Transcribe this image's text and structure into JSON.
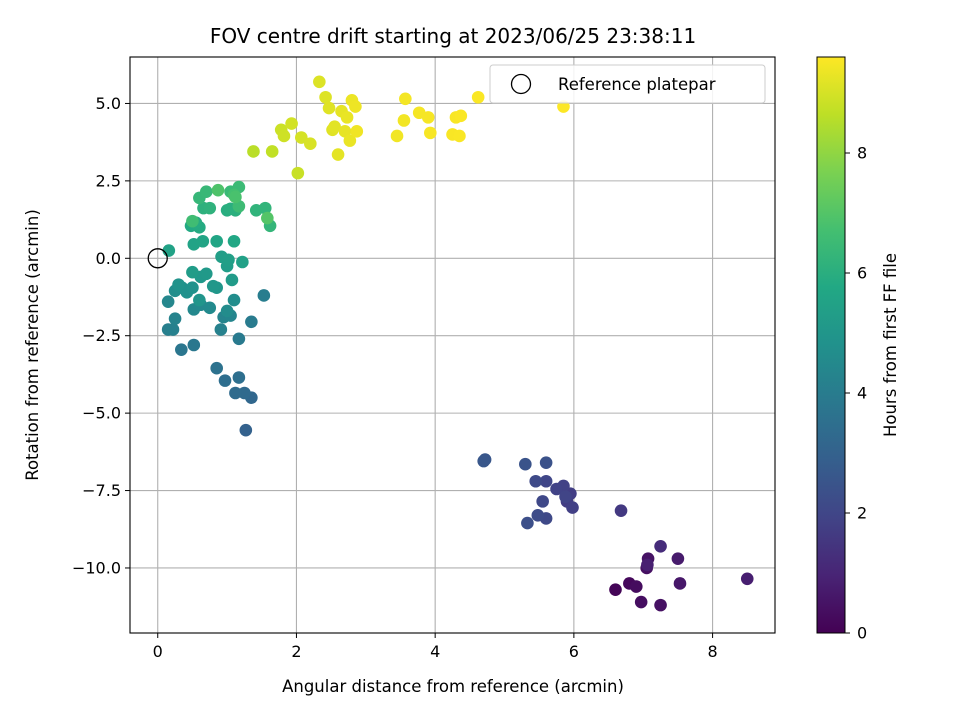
{
  "chart_data": {
    "type": "scatter",
    "title": "FOV centre drift starting at 2023/06/25 23:38:11",
    "xlabel": "Angular distance from reference (arcmin)",
    "ylabel": "Rotation from reference (arcmin)",
    "xlim": [
      -0.4,
      8.9
    ],
    "ylim": [
      -12.1,
      6.5
    ],
    "xticks": [
      0,
      2,
      4,
      6,
      8
    ],
    "yticks": [
      5.0,
      2.5,
      0.0,
      -2.5,
      -5.0,
      -7.5,
      -10.0
    ],
    "ytick_labels": [
      "5.0",
      "2.5",
      "0.0",
      "−2.5",
      "−5.0",
      "−7.5",
      "−10.0"
    ],
    "grid": true,
    "colorbar": {
      "label": "Hours from first FF file",
      "range": [
        0,
        9.6
      ],
      "ticks": [
        0,
        2,
        4,
        6,
        8
      ],
      "colormap": "viridis"
    },
    "legend": {
      "location": "top-right",
      "entries": [
        "Reference platepar"
      ]
    },
    "reference_point": {
      "x": 0,
      "y": 0
    },
    "series": [
      {
        "points": [
          {
            "x": 6.6,
            "y": -10.7,
            "h": 0.1
          },
          {
            "x": 6.8,
            "y": -10.5,
            "h": 0.2
          },
          {
            "x": 6.9,
            "y": -10.6,
            "h": 0.3
          },
          {
            "x": 6.97,
            "y": -11.1,
            "h": 0.35
          },
          {
            "x": 7.05,
            "y": -10.0,
            "h": 0.4
          },
          {
            "x": 7.25,
            "y": -11.2,
            "h": 0.45
          },
          {
            "x": 7.07,
            "y": -9.7,
            "h": 0.5
          },
          {
            "x": 7.53,
            "y": -10.5,
            "h": 0.6
          },
          {
            "x": 7.5,
            "y": -9.7,
            "h": 0.7
          },
          {
            "x": 8.5,
            "y": -10.35,
            "h": 0.8
          },
          {
            "x": 7.06,
            "y": -9.9,
            "h": 0.85
          },
          {
            "x": 7.25,
            "y": -9.3,
            "h": 1.2
          },
          {
            "x": 6.68,
            "y": -8.15,
            "h": 1.6
          },
          {
            "x": 5.9,
            "y": -7.85,
            "h": 1.7
          },
          {
            "x": 5.95,
            "y": -7.6,
            "h": 1.75
          },
          {
            "x": 5.98,
            "y": -8.05,
            "h": 1.8
          },
          {
            "x": 5.85,
            "y": -7.35,
            "h": 1.85
          },
          {
            "x": 5.75,
            "y": -7.45,
            "h": 1.9
          },
          {
            "x": 5.88,
            "y": -7.7,
            "h": 1.95
          },
          {
            "x": 5.6,
            "y": -7.2,
            "h": 2.0
          },
          {
            "x": 5.55,
            "y": -7.85,
            "h": 2.05
          },
          {
            "x": 5.6,
            "y": -8.4,
            "h": 2.1
          },
          {
            "x": 5.45,
            "y": -7.2,
            "h": 2.15
          },
          {
            "x": 5.48,
            "y": -8.3,
            "h": 2.2
          },
          {
            "x": 5.33,
            "y": -8.55,
            "h": 2.3
          },
          {
            "x": 5.6,
            "y": -6.6,
            "h": 2.4
          },
          {
            "x": 5.3,
            "y": -6.65,
            "h": 2.45
          },
          {
            "x": 4.72,
            "y": -6.5,
            "h": 2.55
          },
          {
            "x": 4.7,
            "y": -6.55,
            "h": 2.6
          },
          {
            "x": 1.27,
            "y": -5.55,
            "h": 3.0
          },
          {
            "x": 1.35,
            "y": -4.5,
            "h": 3.2
          },
          {
            "x": 1.25,
            "y": -4.35,
            "h": 3.3
          },
          {
            "x": 1.12,
            "y": -4.35,
            "h": 3.35
          },
          {
            "x": 0.97,
            "y": -3.95,
            "h": 3.45
          },
          {
            "x": 1.17,
            "y": -3.85,
            "h": 3.5
          },
          {
            "x": 0.85,
            "y": -3.55,
            "h": 3.6
          },
          {
            "x": 0.34,
            "y": -2.95,
            "h": 3.75
          },
          {
            "x": 0.52,
            "y": -2.8,
            "h": 3.8
          },
          {
            "x": 1.17,
            "y": -2.6,
            "h": 3.9
          },
          {
            "x": 1.35,
            "y": -2.05,
            "h": 3.95
          },
          {
            "x": 1.53,
            "y": -1.2,
            "h": 4.05
          },
          {
            "x": 0.15,
            "y": -2.3,
            "h": 4.1
          },
          {
            "x": 0.22,
            "y": -2.3,
            "h": 4.15
          },
          {
            "x": 0.91,
            "y": -2.3,
            "h": 4.2
          },
          {
            "x": 0.25,
            "y": -1.95,
            "h": 4.25
          },
          {
            "x": 0.95,
            "y": -1.9,
            "h": 4.3
          },
          {
            "x": 1.05,
            "y": -1.85,
            "h": 4.35
          },
          {
            "x": 0.15,
            "y": -1.4,
            "h": 4.4
          },
          {
            "x": 0.52,
            "y": -1.65,
            "h": 4.45
          },
          {
            "x": 0.62,
            "y": -1.5,
            "h": 4.5
          },
          {
            "x": 0.75,
            "y": -1.6,
            "h": 4.55
          },
          {
            "x": 1.0,
            "y": -1.7,
            "h": 4.6
          },
          {
            "x": 1.1,
            "y": -1.35,
            "h": 4.65
          },
          {
            "x": 0.25,
            "y": -1.05,
            "h": 4.7
          },
          {
            "x": 0.35,
            "y": -0.95,
            "h": 4.75
          },
          {
            "x": 0.42,
            "y": -1.1,
            "h": 4.8
          },
          {
            "x": 0.5,
            "y": -0.95,
            "h": 4.85
          },
          {
            "x": 0.3,
            "y": -0.85,
            "h": 4.9
          },
          {
            "x": 0.6,
            "y": -1.35,
            "h": 4.95
          },
          {
            "x": 0.85,
            "y": -0.95,
            "h": 5.0
          },
          {
            "x": 0.8,
            "y": -0.9,
            "h": 5.05
          },
          {
            "x": 0.62,
            "y": -0.6,
            "h": 5.1
          },
          {
            "x": 0.7,
            "y": -0.5,
            "h": 5.15
          },
          {
            "x": 1.07,
            "y": -0.7,
            "h": 5.2
          },
          {
            "x": 0.5,
            "y": -0.45,
            "h": 5.25
          },
          {
            "x": 1.0,
            "y": -0.25,
            "h": 5.3
          },
          {
            "x": 0.92,
            "y": 0.05,
            "h": 5.35
          },
          {
            "x": 1.02,
            "y": -0.05,
            "h": 5.4
          },
          {
            "x": 1.22,
            "y": -0.12,
            "h": 5.45
          },
          {
            "x": 0.16,
            "y": 0.25,
            "h": 5.5
          },
          {
            "x": 0.52,
            "y": 0.45,
            "h": 5.55
          },
          {
            "x": 0.65,
            "y": 0.55,
            "h": 5.6
          },
          {
            "x": 0.85,
            "y": 0.55,
            "h": 5.65
          },
          {
            "x": 1.1,
            "y": 0.55,
            "h": 5.7
          },
          {
            "x": 0.48,
            "y": 1.05,
            "h": 5.8
          },
          {
            "x": 0.6,
            "y": 1.0,
            "h": 5.85
          },
          {
            "x": 0.55,
            "y": 1.15,
            "h": 5.9
          },
          {
            "x": 1.0,
            "y": 1.55,
            "h": 5.95
          },
          {
            "x": 1.05,
            "y": 1.6,
            "h": 6.0
          },
          {
            "x": 1.12,
            "y": 1.55,
            "h": 6.05
          },
          {
            "x": 0.66,
            "y": 1.62,
            "h": 6.1
          },
          {
            "x": 0.75,
            "y": 1.62,
            "h": 6.15
          },
          {
            "x": 1.42,
            "y": 1.55,
            "h": 6.2
          },
          {
            "x": 1.55,
            "y": 1.62,
            "h": 6.25
          },
          {
            "x": 1.62,
            "y": 1.05,
            "h": 6.3
          },
          {
            "x": 0.6,
            "y": 1.95,
            "h": 6.35
          },
          {
            "x": 0.7,
            "y": 2.15,
            "h": 6.4
          },
          {
            "x": 1.05,
            "y": 2.15,
            "h": 6.45
          },
          {
            "x": 1.17,
            "y": 2.3,
            "h": 6.5
          },
          {
            "x": 1.17,
            "y": 1.68,
            "h": 6.55
          },
          {
            "x": 0.5,
            "y": 1.2,
            "h": 6.6
          },
          {
            "x": 1.1,
            "y": 2.05,
            "h": 6.7
          },
          {
            "x": 1.12,
            "y": 1.98,
            "h": 6.8
          },
          {
            "x": 0.87,
            "y": 2.2,
            "h": 6.9
          },
          {
            "x": 1.58,
            "y": 1.3,
            "h": 7.0
          },
          {
            "x": 1.38,
            "y": 3.45,
            "h": 8.6
          },
          {
            "x": 1.65,
            "y": 3.45,
            "h": 8.7
          },
          {
            "x": 2.02,
            "y": 2.75,
            "h": 8.8
          },
          {
            "x": 1.78,
            "y": 4.15,
            "h": 8.85
          },
          {
            "x": 1.82,
            "y": 3.95,
            "h": 8.9
          },
          {
            "x": 1.93,
            "y": 4.35,
            "h": 8.95
          },
          {
            "x": 2.07,
            "y": 3.9,
            "h": 9.0
          },
          {
            "x": 2.2,
            "y": 3.7,
            "h": 9.05
          },
          {
            "x": 2.33,
            "y": 5.7,
            "h": 9.1
          },
          {
            "x": 2.42,
            "y": 5.2,
            "h": 9.12
          },
          {
            "x": 2.47,
            "y": 4.85,
            "h": 9.15
          },
          {
            "x": 2.52,
            "y": 4.15,
            "h": 9.17
          },
          {
            "x": 2.55,
            "y": 4.25,
            "h": 9.2
          },
          {
            "x": 2.6,
            "y": 3.35,
            "h": 9.22
          },
          {
            "x": 2.65,
            "y": 4.75,
            "h": 9.25
          },
          {
            "x": 2.7,
            "y": 4.1,
            "h": 9.27
          },
          {
            "x": 2.73,
            "y": 4.55,
            "h": 9.3
          },
          {
            "x": 2.77,
            "y": 3.8,
            "h": 9.32
          },
          {
            "x": 2.8,
            "y": 5.1,
            "h": 9.35
          },
          {
            "x": 2.85,
            "y": 4.9,
            "h": 9.37
          },
          {
            "x": 2.87,
            "y": 4.1,
            "h": 9.4
          },
          {
            "x": 3.45,
            "y": 3.95,
            "h": 9.42
          },
          {
            "x": 3.55,
            "y": 4.45,
            "h": 9.44
          },
          {
            "x": 3.57,
            "y": 5.15,
            "h": 9.46
          },
          {
            "x": 3.77,
            "y": 4.7,
            "h": 9.48
          },
          {
            "x": 3.9,
            "y": 4.55,
            "h": 9.5
          },
          {
            "x": 3.93,
            "y": 4.05,
            "h": 9.51
          },
          {
            "x": 4.25,
            "y": 4.0,
            "h": 9.52
          },
          {
            "x": 4.3,
            "y": 4.55,
            "h": 9.53
          },
          {
            "x": 4.35,
            "y": 3.95,
            "h": 9.54
          },
          {
            "x": 4.37,
            "y": 4.6,
            "h": 9.55
          },
          {
            "x": 4.62,
            "y": 5.2,
            "h": 9.56
          },
          {
            "x": 5.85,
            "y": 4.9,
            "h": 9.58
          }
        ]
      }
    ]
  }
}
